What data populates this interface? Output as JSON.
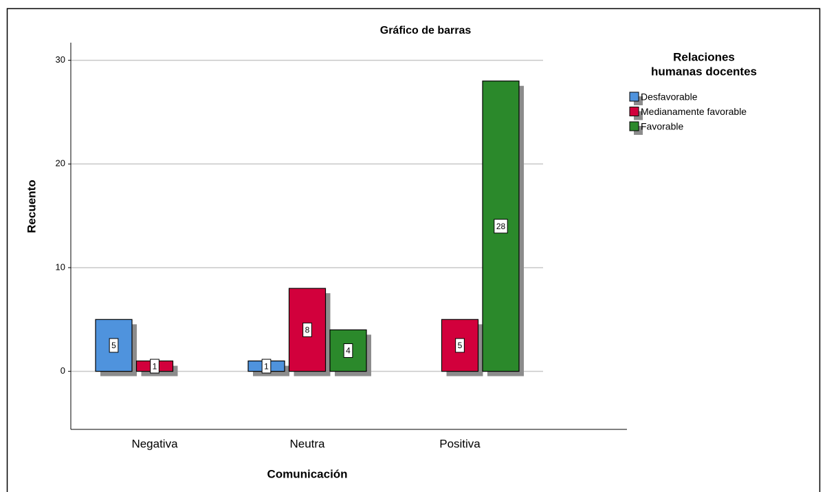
{
  "chart_data": {
    "type": "bar",
    "title": "Gráfico de barras",
    "x_label": "Comunicación",
    "y_label": "Recuento",
    "legend_title": [
      "Relaciones",
      "humanas docentes"
    ],
    "categories": [
      "Negativa",
      "Neutra",
      "Positiva"
    ],
    "series": [
      {
        "name": "Desfavorable",
        "color": "#4f93dd",
        "values": [
          5,
          1,
          null
        ]
      },
      {
        "name": "Medianamente favorable",
        "color": "#d2003c",
        "values": [
          1,
          8,
          5
        ]
      },
      {
        "name": "Favorable",
        "color": "#2b892b",
        "values": [
          null,
          4,
          28
        ]
      }
    ],
    "ylim": [
      -5.6,
      31.7
    ],
    "yticks": [
      0,
      10,
      20,
      30
    ],
    "grid": true,
    "legend": "right"
  }
}
